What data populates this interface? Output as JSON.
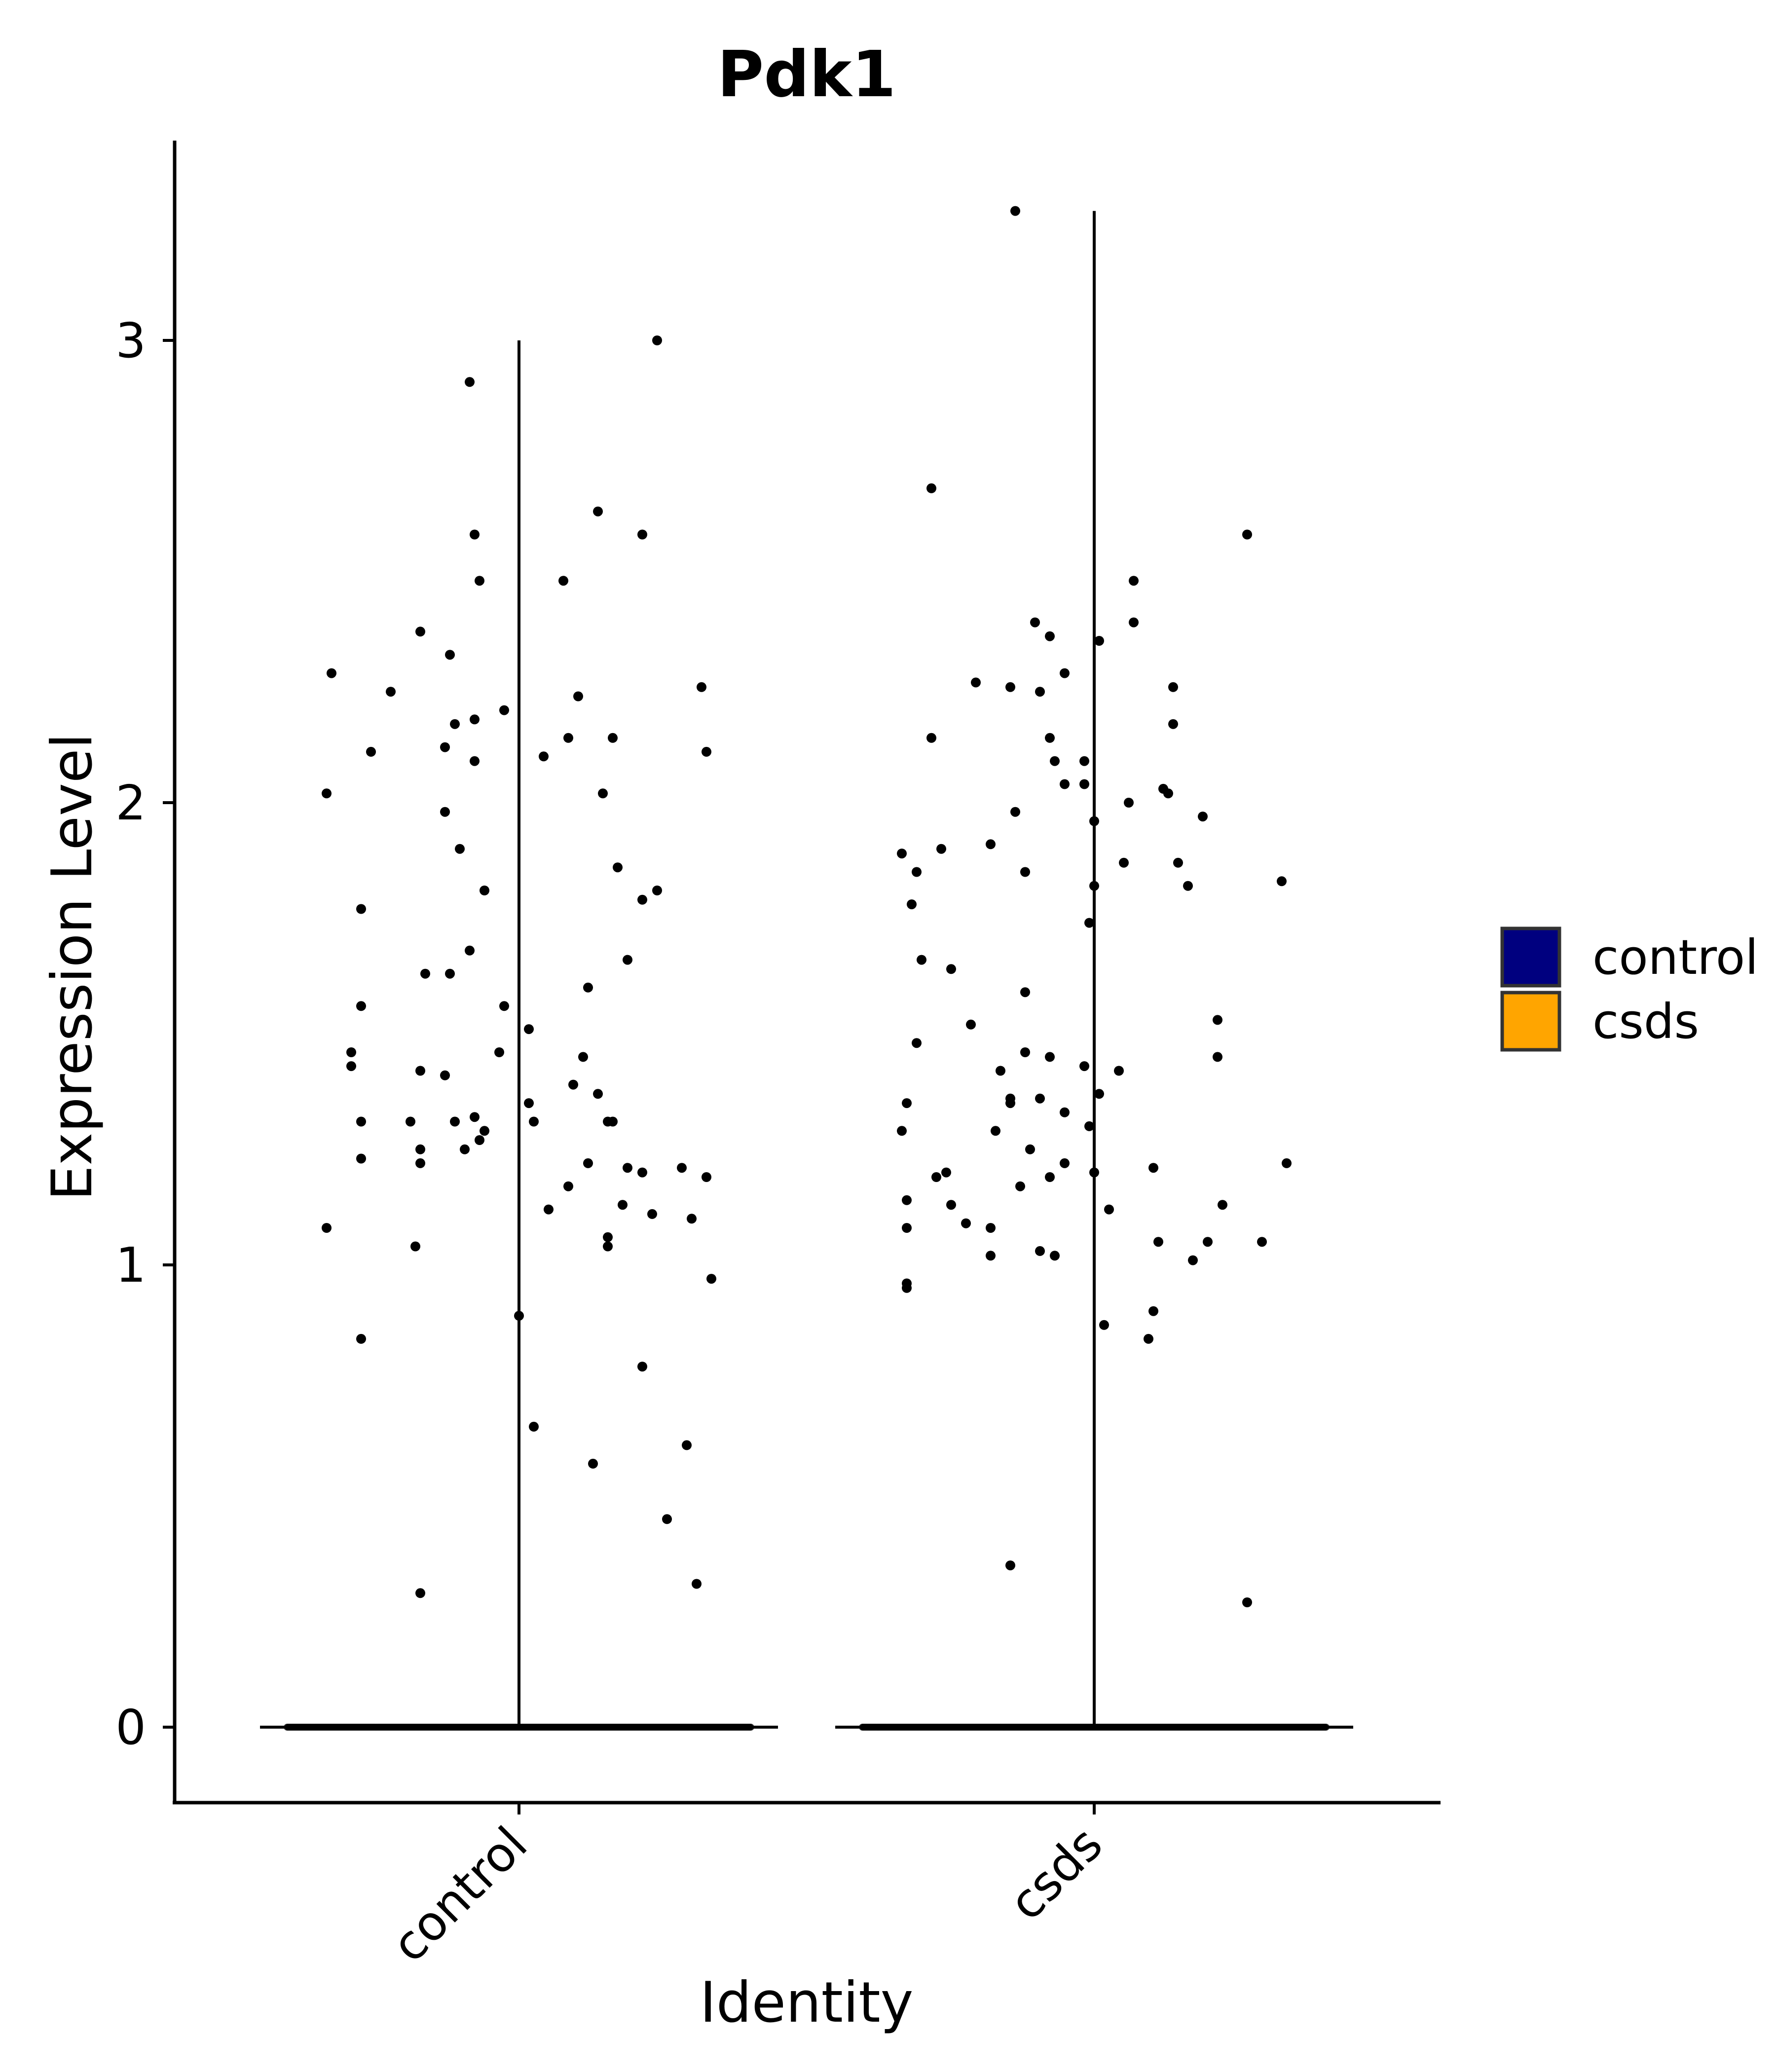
{
  "chart_data": {
    "type": "violin",
    "title": "Pdk1",
    "xlabel": "Identity",
    "ylabel": "Expression Level",
    "categories": [
      "control",
      "csds"
    ],
    "y_ticks": [
      0,
      1,
      2,
      3
    ],
    "ylim": [
      -0.16,
      3.45
    ],
    "grid": false,
    "legend": {
      "position": "right",
      "entries": [
        {
          "label": "control",
          "color": "#00007F"
        },
        {
          "label": "csds",
          "color": "#FFA500"
        }
      ]
    },
    "violin_max": {
      "control": 3.0,
      "csds": 3.28
    },
    "point_color": "#000000",
    "series": [
      {
        "name": "control",
        "zero_count": 600,
        "nonzero_points": [
          {
            "jitter": -0.38,
            "y": 2.28
          },
          {
            "jitter": -0.26,
            "y": 2.24
          },
          {
            "jitter": -0.3,
            "y": 2.11
          },
          {
            "jitter": -0.39,
            "y": 2.02
          },
          {
            "jitter": -0.32,
            "y": 1.77
          },
          {
            "jitter": -0.32,
            "y": 1.56
          },
          {
            "jitter": -0.34,
            "y": 1.46
          },
          {
            "jitter": -0.34,
            "y": 1.43
          },
          {
            "jitter": -0.32,
            "y": 1.31
          },
          {
            "jitter": -0.32,
            "y": 1.23
          },
          {
            "jitter": -0.39,
            "y": 1.08
          },
          {
            "jitter": -0.32,
            "y": 0.84
          },
          {
            "jitter": -0.2,
            "y": 2.37
          },
          {
            "jitter": -0.14,
            "y": 2.32
          },
          {
            "jitter": -0.13,
            "y": 2.17
          },
          {
            "jitter": -0.09,
            "y": 2.18
          },
          {
            "jitter": -0.15,
            "y": 2.12
          },
          {
            "jitter": -0.09,
            "y": 2.09
          },
          {
            "jitter": -0.15,
            "y": 1.98
          },
          {
            "jitter": -0.12,
            "y": 1.9
          },
          {
            "jitter": -0.07,
            "y": 1.81
          },
          {
            "jitter": -0.1,
            "y": 1.68
          },
          {
            "jitter": -0.19,
            "y": 1.63
          },
          {
            "jitter": -0.14,
            "y": 1.63
          },
          {
            "jitter": -0.2,
            "y": 1.42
          },
          {
            "jitter": -0.15,
            "y": 1.41
          },
          {
            "jitter": -0.09,
            "y": 1.32
          },
          {
            "jitter": -0.13,
            "y": 1.31
          },
          {
            "jitter": -0.22,
            "y": 1.31
          },
          {
            "jitter": -0.07,
            "y": 1.29
          },
          {
            "jitter": -0.08,
            "y": 1.27
          },
          {
            "jitter": -0.11,
            "y": 1.25
          },
          {
            "jitter": -0.2,
            "y": 1.25
          },
          {
            "jitter": -0.2,
            "y": 1.22
          },
          {
            "jitter": -0.21,
            "y": 1.04
          },
          {
            "jitter": -0.2,
            "y": 0.29
          },
          {
            "jitter": -0.1,
            "y": 2.91
          },
          {
            "jitter": -0.09,
            "y": 2.58
          },
          {
            "jitter": -0.08,
            "y": 2.48
          },
          {
            "jitter": -0.03,
            "y": 2.2
          },
          {
            "jitter": -0.04,
            "y": 1.46
          },
          {
            "jitter": -0.03,
            "y": 1.56
          },
          {
            "jitter": 0.02,
            "y": 1.51
          },
          {
            "jitter": 0.02,
            "y": 1.35
          },
          {
            "jitter": 0.03,
            "y": 1.31
          },
          {
            "jitter": 0.0,
            "y": 0.89
          },
          {
            "jitter": 0.03,
            "y": 0.65
          },
          {
            "jitter": 0.05,
            "y": 2.1
          },
          {
            "jitter": 0.06,
            "y": 1.12
          },
          {
            "jitter": 0.09,
            "y": 2.48
          },
          {
            "jitter": 0.1,
            "y": 2.14
          },
          {
            "jitter": 0.12,
            "y": 2.23
          },
          {
            "jitter": 0.14,
            "y": 1.6
          },
          {
            "jitter": 0.11,
            "y": 1.39
          },
          {
            "jitter": 0.13,
            "y": 1.45
          },
          {
            "jitter": 0.1,
            "y": 1.17
          },
          {
            "jitter": 0.14,
            "y": 1.22
          },
          {
            "jitter": 0.16,
            "y": 2.63
          },
          {
            "jitter": 0.17,
            "y": 2.02
          },
          {
            "jitter": 0.19,
            "y": 2.14
          },
          {
            "jitter": 0.2,
            "y": 1.86
          },
          {
            "jitter": 0.16,
            "y": 1.37
          },
          {
            "jitter": 0.18,
            "y": 1.31
          },
          {
            "jitter": 0.19,
            "y": 1.31
          },
          {
            "jitter": 0.22,
            "y": 1.66
          },
          {
            "jitter": 0.21,
            "y": 1.13
          },
          {
            "jitter": 0.18,
            "y": 1.06
          },
          {
            "jitter": 0.18,
            "y": 1.04
          },
          {
            "jitter": 0.15,
            "y": 0.57
          },
          {
            "jitter": 0.28,
            "y": 3.0
          },
          {
            "jitter": 0.25,
            "y": 2.58
          },
          {
            "jitter": 0.25,
            "y": 1.79
          },
          {
            "jitter": 0.28,
            "y": 1.81
          },
          {
            "jitter": 0.22,
            "y": 1.21
          },
          {
            "jitter": 0.25,
            "y": 1.2
          },
          {
            "jitter": 0.27,
            "y": 1.11
          },
          {
            "jitter": 0.25,
            "y": 0.78
          },
          {
            "jitter": 0.3,
            "y": 0.45
          },
          {
            "jitter": 0.37,
            "y": 2.25
          },
          {
            "jitter": 0.38,
            "y": 2.11
          },
          {
            "jitter": 0.33,
            "y": 1.21
          },
          {
            "jitter": 0.38,
            "y": 1.19
          },
          {
            "jitter": 0.35,
            "y": 1.1
          },
          {
            "jitter": 0.39,
            "y": 0.97
          },
          {
            "jitter": 0.34,
            "y": 0.61
          },
          {
            "jitter": 0.36,
            "y": 0.31
          }
        ]
      },
      {
        "name": "csds",
        "zero_count": 600,
        "nonzero_points": [
          {
            "jitter": -0.39,
            "y": 1.89
          },
          {
            "jitter": -0.36,
            "y": 1.85
          },
          {
            "jitter": -0.37,
            "y": 1.78
          },
          {
            "jitter": -0.35,
            "y": 1.66
          },
          {
            "jitter": -0.36,
            "y": 1.48
          },
          {
            "jitter": -0.38,
            "y": 1.35
          },
          {
            "jitter": -0.39,
            "y": 1.29
          },
          {
            "jitter": -0.38,
            "y": 1.14
          },
          {
            "jitter": -0.38,
            "y": 1.08
          },
          {
            "jitter": -0.38,
            "y": 0.96
          },
          {
            "jitter": -0.38,
            "y": 0.95
          },
          {
            "jitter": -0.33,
            "y": 2.68
          },
          {
            "jitter": -0.33,
            "y": 2.14
          },
          {
            "jitter": -0.31,
            "y": 1.9
          },
          {
            "jitter": -0.29,
            "y": 1.64
          },
          {
            "jitter": -0.32,
            "y": 1.19
          },
          {
            "jitter": -0.3,
            "y": 1.2
          },
          {
            "jitter": -0.29,
            "y": 1.13
          },
          {
            "jitter": -0.26,
            "y": 1.09
          },
          {
            "jitter": -0.24,
            "y": 2.26
          },
          {
            "jitter": -0.25,
            "y": 1.52
          },
          {
            "jitter": -0.21,
            "y": 1.91
          },
          {
            "jitter": -0.21,
            "y": 1.08
          },
          {
            "jitter": -0.21,
            "y": 1.02
          },
          {
            "jitter": -0.17,
            "y": 2.25
          },
          {
            "jitter": -0.16,
            "y": 1.98
          },
          {
            "jitter": -0.14,
            "y": 1.85
          },
          {
            "jitter": -0.14,
            "y": 1.59
          },
          {
            "jitter": -0.14,
            "y": 1.46
          },
          {
            "jitter": -0.19,
            "y": 1.42
          },
          {
            "jitter": -0.17,
            "y": 1.36
          },
          {
            "jitter": -0.17,
            "y": 1.35
          },
          {
            "jitter": -0.2,
            "y": 1.29
          },
          {
            "jitter": -0.15,
            "y": 1.17
          },
          {
            "jitter": -0.17,
            "y": 0.35
          },
          {
            "jitter": -0.12,
            "y": 2.39
          },
          {
            "jitter": -0.09,
            "y": 2.36
          },
          {
            "jitter": -0.11,
            "y": 2.24
          },
          {
            "jitter": -0.06,
            "y": 2.28
          },
          {
            "jitter": -0.09,
            "y": 2.14
          },
          {
            "jitter": -0.08,
            "y": 2.09
          },
          {
            "jitter": -0.06,
            "y": 2.04
          },
          {
            "jitter": -0.02,
            "y": 2.09
          },
          {
            "jitter": -0.02,
            "y": 2.04
          },
          {
            "jitter": -0.09,
            "y": 1.45
          },
          {
            "jitter": -0.11,
            "y": 1.36
          },
          {
            "jitter": -0.02,
            "y": 1.43
          },
          {
            "jitter": -0.13,
            "y": 1.25
          },
          {
            "jitter": -0.06,
            "y": 1.33
          },
          {
            "jitter": -0.01,
            "y": 1.3
          },
          {
            "jitter": -0.09,
            "y": 1.19
          },
          {
            "jitter": -0.06,
            "y": 1.22
          },
          {
            "jitter": -0.11,
            "y": 1.03
          },
          {
            "jitter": -0.08,
            "y": 1.02
          },
          {
            "jitter": 0.01,
            "y": 2.35
          },
          {
            "jitter": 0.0,
            "y": 1.96
          },
          {
            "jitter": 0.0,
            "y": 1.82
          },
          {
            "jitter": -0.01,
            "y": 1.74
          },
          {
            "jitter": 0.01,
            "y": 1.37
          },
          {
            "jitter": 0.0,
            "y": 1.2
          },
          {
            "jitter": 0.03,
            "y": 1.12
          },
          {
            "jitter": 0.02,
            "y": 0.87
          },
          {
            "jitter": 0.08,
            "y": 2.48
          },
          {
            "jitter": 0.08,
            "y": 2.39
          },
          {
            "jitter": 0.07,
            "y": 2.0
          },
          {
            "jitter": 0.06,
            "y": 1.87
          },
          {
            "jitter": 0.05,
            "y": 1.42
          },
          {
            "jitter": 0.12,
            "y": 1.21
          },
          {
            "jitter": 0.13,
            "y": 1.05
          },
          {
            "jitter": 0.12,
            "y": 0.9
          },
          {
            "jitter": 0.11,
            "y": 0.84
          },
          {
            "jitter": 0.16,
            "y": 2.25
          },
          {
            "jitter": 0.16,
            "y": 2.17
          },
          {
            "jitter": 0.14,
            "y": 2.03
          },
          {
            "jitter": 0.15,
            "y": 2.02
          },
          {
            "jitter": 0.17,
            "y": 1.87
          },
          {
            "jitter": 0.19,
            "y": 1.82
          },
          {
            "jitter": 0.22,
            "y": 1.97
          },
          {
            "jitter": 0.25,
            "y": 1.53
          },
          {
            "jitter": 0.25,
            "y": 1.45
          },
          {
            "jitter": 0.23,
            "y": 1.05
          },
          {
            "jitter": 0.2,
            "y": 1.01
          },
          {
            "jitter": 0.31,
            "y": 2.58
          },
          {
            "jitter": 0.26,
            "y": 1.13
          },
          {
            "jitter": 0.34,
            "y": 1.05
          },
          {
            "jitter": 0.38,
            "y": 1.83
          },
          {
            "jitter": 0.39,
            "y": 1.22
          },
          {
            "jitter": 0.31,
            "y": 0.27
          },
          {
            "jitter": -0.16,
            "y": 3.28
          }
        ]
      }
    ]
  }
}
